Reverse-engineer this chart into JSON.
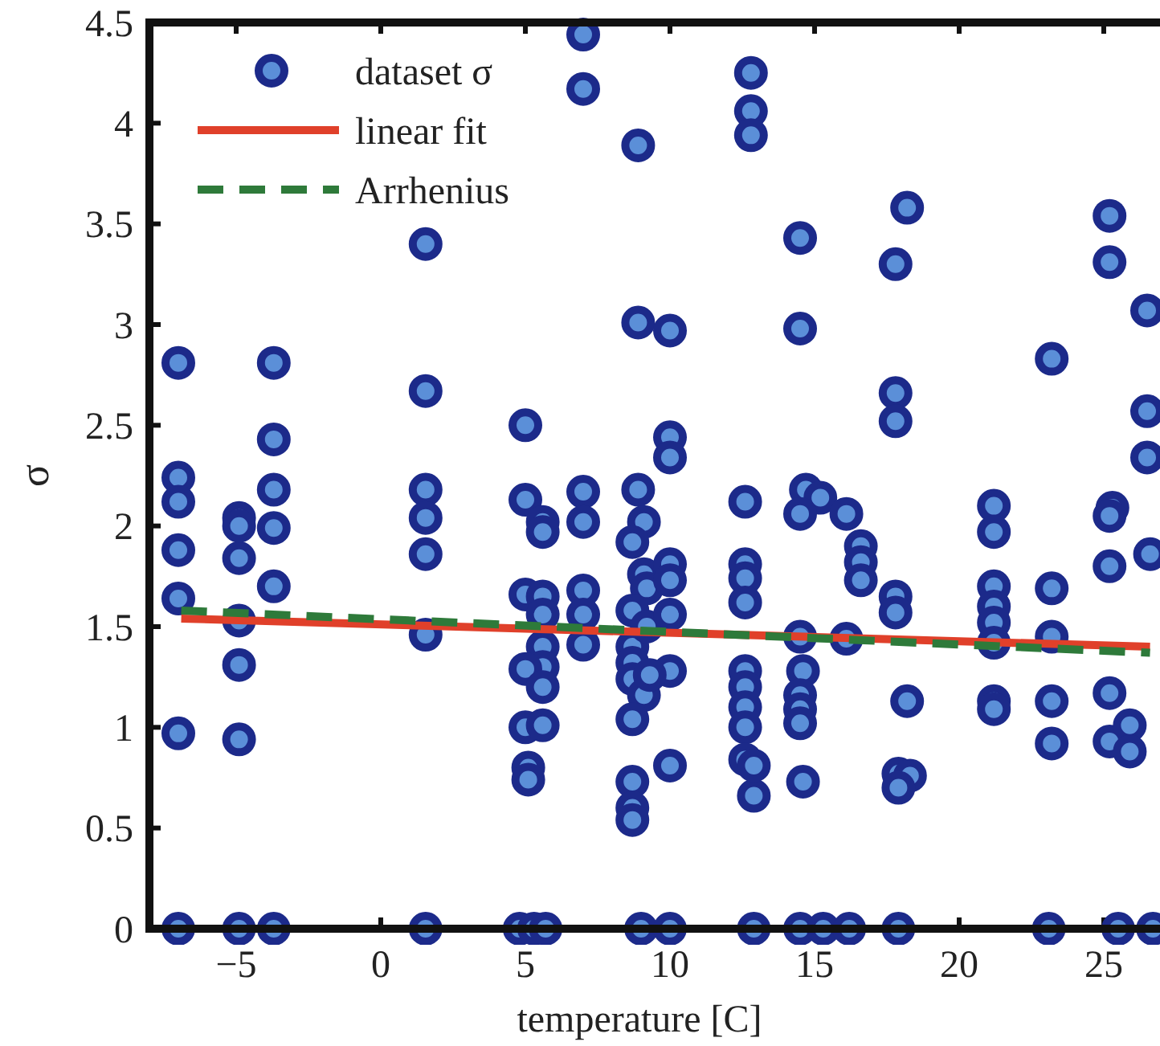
{
  "chart_data": {
    "type": "scatter",
    "xlabel": "temperature [C]",
    "ylabel": "σ",
    "xlim": [
      -8,
      27
    ],
    "ylim": [
      0,
      4.5
    ],
    "xticks": [
      -5,
      0,
      5,
      10,
      15,
      20,
      25
    ],
    "yticks": [
      0,
      0.5,
      1,
      1.5,
      2,
      2.5,
      3,
      3.5,
      4,
      4.5
    ],
    "grid": false,
    "legend": "top left",
    "series": [
      {
        "name": "dataset σ",
        "marker": "circle",
        "color": "#1c2a8a",
        "x": [
          7.0,
          7.0,
          8.9,
          1.55,
          8.9,
          -7.0,
          -3.7,
          1.55,
          5.0,
          -3.7,
          -7.0,
          -7.0,
          -4.9,
          -3.7,
          1.55,
          5.0,
          7.0,
          8.9,
          -7.0,
          -7.0,
          -7.0,
          -4.9,
          -4.9,
          -4.9,
          -4.9,
          -4.9,
          -3.7,
          -3.7,
          1.55,
          1.55,
          1.55,
          5.6,
          5.6,
          5.0,
          5.6,
          5.6,
          5.6,
          5.6,
          5.0,
          5.6,
          5.0,
          5.6,
          5.1,
          5.1,
          7.0,
          7.0,
          7.0,
          7.0,
          9.1,
          8.7,
          9.1,
          9.2,
          8.7,
          8.7,
          8.7,
          8.7,
          9.1,
          8.7,
          8.7,
          8.7,
          8.7,
          9.2,
          -7.0,
          -4.9,
          -3.7,
          1.55,
          4.8,
          5.3,
          5.7,
          9.0,
          12.8,
          12.8,
          12.8,
          18.2,
          14.5,
          17.8,
          25.2,
          25.2,
          26.5,
          14.5,
          10.0,
          23.2,
          17.8,
          17.8,
          26.5,
          26.5,
          10.0,
          10.0,
          12.6,
          14.7,
          15.2,
          14.5,
          16.1,
          21.2,
          25.3,
          16.6,
          16.6,
          16.6,
          21.2,
          21.2,
          21.2,
          21.2,
          21.2,
          21.2,
          21.2,
          23.2,
          23.2,
          23.2,
          23.2,
          25.2,
          25.2,
          25.2,
          25.2,
          25.9,
          25.9,
          26.6,
          17.8,
          17.8,
          18.2,
          17.9,
          18.3,
          17.9,
          10.0,
          10.0,
          10.0,
          10.0,
          10.0,
          9.3,
          12.6,
          12.6,
          12.6,
          12.6,
          12.6,
          12.6,
          12.6,
          12.6,
          12.9,
          12.9,
          14.5,
          14.6,
          14.5,
          14.5,
          14.5,
          14.6,
          16.1,
          10.0,
          12.9,
          14.5,
          15.3,
          16.2,
          17.9,
          23.1,
          25.5,
          26.7
        ],
        "values": [
          4.44,
          4.17,
          3.89,
          3.4,
          3.01,
          2.81,
          2.81,
          2.67,
          2.5,
          2.43,
          2.24,
          2.12,
          2.04,
          2.18,
          2.18,
          2.13,
          2.17,
          2.18,
          1.88,
          1.64,
          0.97,
          1.84,
          1.53,
          1.31,
          0.94,
          2.0,
          1.99,
          1.7,
          2.04,
          1.86,
          1.46,
          2.02,
          1.97,
          1.66,
          1.65,
          1.56,
          1.4,
          1.3,
          1.29,
          1.2,
          1.0,
          1.01,
          0.8,
          0.74,
          2.02,
          1.68,
          1.56,
          1.41,
          2.02,
          1.92,
          1.76,
          1.69,
          1.58,
          1.4,
          1.32,
          1.24,
          1.16,
          1.04,
          0.73,
          0.6,
          0.54,
          1.5,
          0,
          0,
          0,
          0,
          0,
          0,
          0,
          0,
          4.25,
          4.06,
          3.94,
          3.58,
          3.43,
          3.3,
          3.54,
          3.31,
          3.07,
          2.98,
          2.97,
          2.83,
          2.66,
          2.52,
          2.57,
          2.34,
          2.44,
          2.34,
          2.12,
          2.18,
          2.14,
          2.06,
          2.06,
          2.1,
          2.09,
          1.9,
          1.82,
          1.73,
          1.97,
          1.7,
          1.6,
          1.52,
          1.42,
          1.13,
          1.09,
          1.69,
          1.45,
          1.13,
          0.92,
          2.05,
          1.8,
          1.17,
          0.93,
          1.01,
          0.88,
          1.86,
          1.65,
          1.57,
          1.13,
          0.77,
          0.76,
          0.7,
          1.81,
          1.73,
          1.56,
          1.28,
          0.81,
          1.26,
          1.81,
          1.74,
          1.62,
          1.28,
          1.2,
          1.1,
          1.0,
          0.84,
          0.66,
          0.81,
          1.45,
          1.28,
          1.16,
          1.09,
          1.02,
          0.73,
          1.44,
          0,
          0,
          0,
          0,
          0,
          0,
          0,
          0,
          0
        ]
      },
      {
        "name": "linear fit",
        "type": "line",
        "line_style": "solid",
        "color": "#e0402a",
        "x": [
          -6.9,
          26.6
        ],
        "values": [
          1.54,
          1.4
        ]
      },
      {
        "name": "Arrhenius",
        "type": "line",
        "line_style": "dashed",
        "color": "#2e7a3a",
        "x": [
          -6.9,
          26.6
        ],
        "values": [
          1.58,
          1.37
        ]
      }
    ]
  }
}
